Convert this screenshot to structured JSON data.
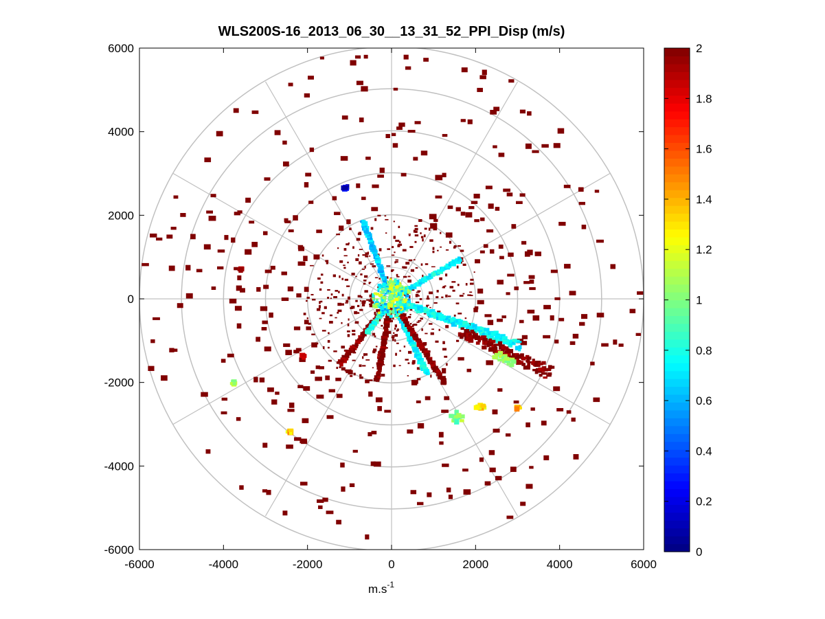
{
  "chart_data": {
    "type": "heatmap",
    "subtype": "polar-ppi",
    "title": "WLS200S-16_2013_06_30__13_31_52_PPI_Disp (m/s)",
    "xlabel": "m.s",
    "xlabel_exponent": "-1",
    "ylabel": "",
    "xlim": [
      -6000,
      6000
    ],
    "ylim": [
      -6000,
      6000
    ],
    "xticks": [
      "-6000",
      "-4000",
      "-2000",
      "0",
      "2000",
      "4000",
      "6000"
    ],
    "yticks": [
      "6000",
      "4000",
      "2000",
      "0",
      "-2000",
      "-4000",
      "-6000"
    ],
    "polar_grid": {
      "ring_radii": [
        1000,
        2000,
        3000,
        4000,
        5000,
        6000
      ],
      "inner_rings": [
        250,
        500,
        750
      ],
      "spoke_angles_deg": [
        0,
        30,
        60,
        90,
        120,
        150,
        180,
        210,
        240,
        270,
        300,
        330
      ]
    },
    "colorbar": {
      "colormap": "jet",
      "range": [
        0,
        2
      ],
      "ticks": [
        "0",
        "0.2",
        "0.4",
        "0.6",
        "0.8",
        "1",
        "1.2",
        "1.4",
        "1.6",
        "1.8",
        "2"
      ]
    },
    "beams": [
      {
        "azimuth_deg": -20,
        "r_start": 150,
        "r_end": 3300,
        "value": 0.75,
        "width": 200
      },
      {
        "azimuth_deg": -25,
        "r_start": 1800,
        "r_end": 4200,
        "value": 2.0,
        "width": 330
      },
      {
        "azimuth_deg": -28,
        "r_start": 2800,
        "r_end": 3300,
        "value": 1.05,
        "width": 180
      },
      {
        "azimuth_deg": 30,
        "r_start": 150,
        "r_end": 1900,
        "value": 0.75,
        "width": 70
      },
      {
        "azimuth_deg": 110,
        "r_start": 150,
        "r_end": 2000,
        "value": 0.65,
        "width": 60
      },
      {
        "azimuth_deg": -65,
        "r_start": 150,
        "r_end": 2000,
        "value": 0.75,
        "width": 80
      },
      {
        "azimuth_deg": -58,
        "r_start": 300,
        "r_end": 2400,
        "value": 2.0,
        "width": 70
      },
      {
        "azimuth_deg": -128,
        "r_start": 200,
        "r_end": 2000,
        "value": 2.0,
        "width": 90
      },
      {
        "azimuth_deg": -125,
        "r_start": 200,
        "r_end": 1000,
        "value": 0.8,
        "width": 60
      },
      {
        "azimuth_deg": -100,
        "r_start": 200,
        "r_end": 2000,
        "value": 2.0,
        "width": 70
      }
    ],
    "clusters": [
      {
        "x": 1550,
        "y": -2850,
        "value": 1.0,
        "radius": 150
      },
      {
        "x": 2100,
        "y": -2600,
        "value": 1.3,
        "radius": 100
      },
      {
        "x": -2400,
        "y": -3200,
        "value": 1.35,
        "radius": 60
      },
      {
        "x": -3750,
        "y": -2000,
        "value": 1.05,
        "radius": 50
      },
      {
        "x": -1100,
        "y": 2650,
        "value": 0.15,
        "radius": 60
      },
      {
        "x": -2100,
        "y": -1350,
        "value": 1.85,
        "radius": 50
      },
      {
        "x": -3600,
        "y": 700,
        "value": 1.85,
        "radius": 50
      },
      {
        "x": 3000,
        "y": -2600,
        "value": 1.4,
        "radius": 50
      }
    ],
    "center": {
      "x": 0,
      "y": 0,
      "value": 0.9,
      "radius": 450
    },
    "scatter": {
      "value": 2.0,
      "description": "sparse dark-red range gates distributed across all rings",
      "seed": 7,
      "count": 340,
      "near_count": 420
    }
  }
}
